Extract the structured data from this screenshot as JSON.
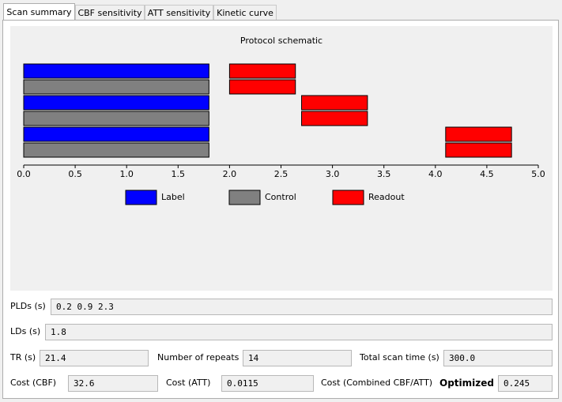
{
  "tabs": [
    {
      "label": "Scan summary",
      "active": true
    },
    {
      "label": "CBF sensitivity",
      "active": false
    },
    {
      "label": "ATT sensitivity",
      "active": false
    },
    {
      "label": "Kinetic curve",
      "active": false
    }
  ],
  "chart_data": {
    "type": "gantt",
    "title": "Protocol schematic",
    "xlim": [
      0.0,
      5.0
    ],
    "xticks": [
      "0.0",
      "0.5",
      "1.0",
      "1.5",
      "2.0",
      "2.5",
      "3.0",
      "3.5",
      "4.0",
      "4.5",
      "5.0"
    ],
    "xtick_values": [
      0.0,
      0.5,
      1.0,
      1.5,
      2.0,
      2.5,
      3.0,
      3.5,
      4.0,
      4.5,
      5.0
    ],
    "grid": false,
    "legend_position": "bottom",
    "legend": [
      {
        "name": "Label",
        "color": "#0000ff"
      },
      {
        "name": "Control",
        "color": "#808080"
      },
      {
        "name": "Readout",
        "color": "#ff0000"
      }
    ],
    "rows": [
      {
        "segments": [
          {
            "kind": "Label",
            "start": 0.0,
            "end": 1.8
          },
          {
            "kind": "Readout",
            "start": 2.0,
            "end": 2.64
          }
        ]
      },
      {
        "segments": [
          {
            "kind": "Control",
            "start": 0.0,
            "end": 1.8
          },
          {
            "kind": "Readout",
            "start": 2.0,
            "end": 2.64
          }
        ]
      },
      {
        "segments": [
          {
            "kind": "Label",
            "start": 0.0,
            "end": 1.8
          },
          {
            "kind": "Readout",
            "start": 2.7,
            "end": 3.34
          }
        ]
      },
      {
        "segments": [
          {
            "kind": "Control",
            "start": 0.0,
            "end": 1.8
          },
          {
            "kind": "Readout",
            "start": 2.7,
            "end": 3.34
          }
        ]
      },
      {
        "segments": [
          {
            "kind": "Label",
            "start": 0.0,
            "end": 1.8
          },
          {
            "kind": "Readout",
            "start": 4.1,
            "end": 4.74
          }
        ]
      },
      {
        "segments": [
          {
            "kind": "Control",
            "start": 0.0,
            "end": 1.8
          },
          {
            "kind": "Readout",
            "start": 4.1,
            "end": 4.74
          }
        ]
      }
    ]
  },
  "fields": {
    "plds": {
      "label": "PLDs (s)",
      "value": "0.2 0.9 2.3"
    },
    "lds": {
      "label": "LDs (s)",
      "value": "1.8"
    },
    "tr": {
      "label": "TR (s)",
      "value": "21.4"
    },
    "repeats": {
      "label": "Number of repeats",
      "value": "14"
    },
    "total_time": {
      "label": "Total scan time (s)",
      "value": "300.0"
    },
    "cost_cbf": {
      "label": "Cost (CBF)",
      "value": "32.6"
    },
    "cost_att": {
      "label": "Cost (ATT)",
      "value": "0.0115"
    },
    "cost_combined": {
      "label": "Cost (Combined CBF/ATT)",
      "value": "0.245"
    },
    "optimized": {
      "label": "Optimized"
    }
  }
}
